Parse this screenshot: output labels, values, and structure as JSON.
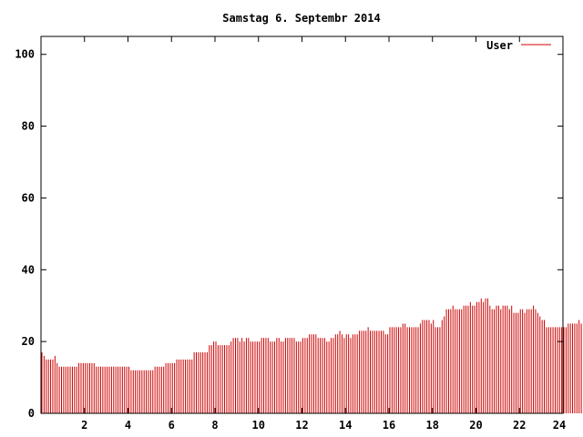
{
  "chart_data": {
    "type": "bar",
    "title": "Samstag 6. Septembr 2014",
    "xlabel": "",
    "ylabel": "",
    "xlim": [
      0,
      24
    ],
    "ylim": [
      0,
      105
    ],
    "x_ticks": [
      2,
      4,
      6,
      8,
      10,
      12,
      14,
      16,
      18,
      20,
      22,
      24
    ],
    "y_ticks": [
      0,
      20,
      40,
      60,
      80,
      100
    ],
    "grid": false,
    "legend_position": "top-right",
    "series": [
      {
        "name": "User",
        "color": "#cc0000",
        "x_step_hours": 0.1,
        "values": [
          17,
          16,
          15,
          15,
          15,
          15,
          16,
          14,
          13,
          13,
          13,
          13,
          13,
          13,
          13,
          13,
          13,
          14,
          14,
          14,
          14,
          14,
          14,
          14,
          14,
          13,
          13,
          13,
          13,
          13,
          13,
          13,
          13,
          13,
          13,
          13,
          13,
          13,
          13,
          13,
          13,
          12,
          12,
          12,
          12,
          12,
          12,
          12,
          12,
          12,
          12,
          12,
          13,
          13,
          13,
          13,
          13,
          14,
          14,
          14,
          14,
          14,
          15,
          15,
          15,
          15,
          15,
          15,
          15,
          15,
          17,
          17,
          17,
          17,
          17,
          17,
          17,
          19,
          19,
          20,
          20,
          19,
          19,
          19,
          19,
          19,
          19,
          20,
          21,
          21,
          21,
          20,
          21,
          20,
          21,
          21,
          20,
          20,
          20,
          20,
          20,
          21,
          21,
          21,
          21,
          20,
          20,
          20,
          21,
          21,
          20,
          20,
          21,
          21,
          21,
          21,
          21,
          20,
          20,
          20,
          21,
          21,
          21,
          22,
          22,
          22,
          22,
          21,
          21,
          21,
          21,
          20,
          20,
          21,
          21,
          22,
          22,
          23,
          22,
          21,
          22,
          22,
          21,
          22,
          22,
          22,
          23,
          23,
          23,
          23,
          24,
          23,
          23,
          23,
          23,
          23,
          23,
          23,
          22,
          22,
          24,
          24,
          24,
          24,
          24,
          24,
          25,
          25,
          24,
          24,
          24,
          24,
          24,
          24,
          25,
          26,
          26,
          26,
          26,
          25,
          26,
          24,
          24,
          24,
          26,
          27,
          29,
          29,
          29,
          30,
          29,
          29,
          29,
          29,
          30,
          30,
          30,
          31,
          30,
          30,
          31,
          31,
          32,
          31,
          32,
          32,
          30,
          29,
          29,
          30,
          30,
          29,
          30,
          30,
          30,
          29,
          30,
          28,
          28,
          28,
          29,
          29,
          28,
          29,
          29,
          29,
          30,
          29,
          28,
          27,
          26,
          26,
          24,
          24,
          24,
          24,
          24,
          24,
          24,
          24,
          24,
          24,
          25,
          25,
          25,
          25,
          25,
          26,
          25,
          26,
          26,
          26,
          26,
          25
        ]
      }
    ]
  }
}
